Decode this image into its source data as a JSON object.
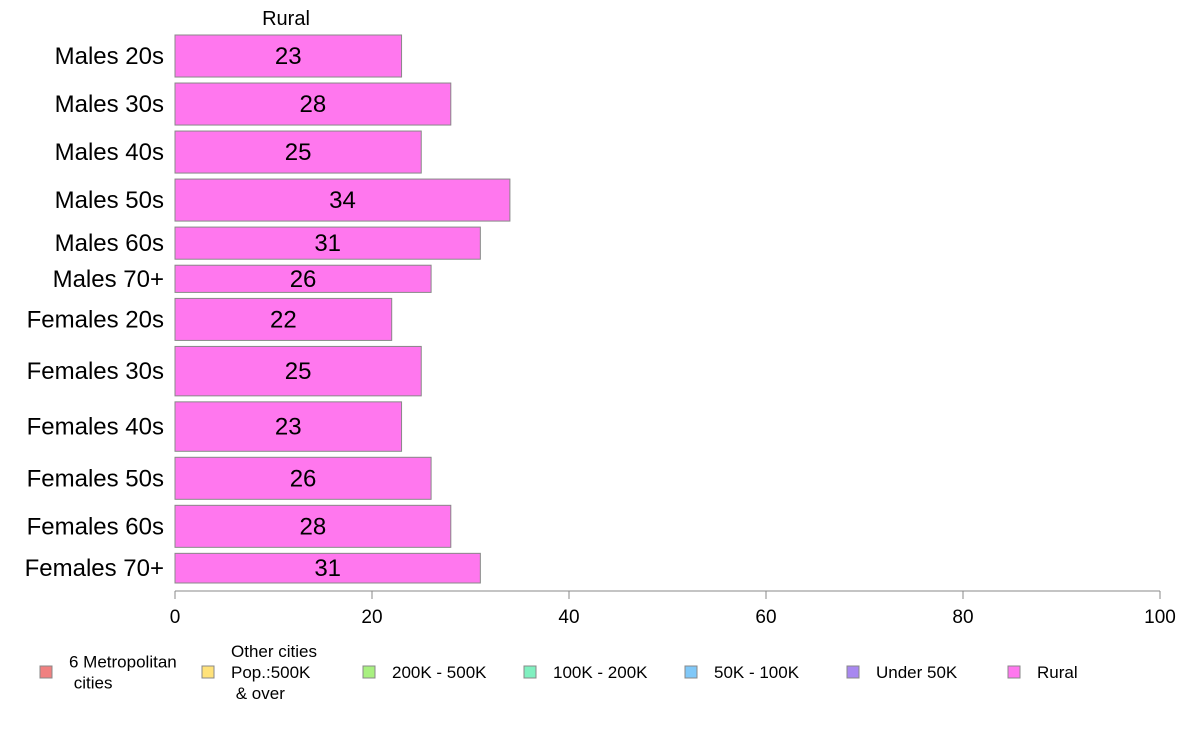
{
  "chart_data": {
    "type": "bar",
    "orientation": "horizontal",
    "panel_title": "Rural",
    "categories": [
      "Males 20s",
      "Males 30s",
      "Males 40s",
      "Males 50s",
      "Males 60s",
      "Males 70+",
      "Females 20s",
      "Females 30s",
      "Females 40s",
      "Females 50s",
      "Females 60s",
      "Females 70+"
    ],
    "values": [
      23,
      28,
      25,
      34,
      31,
      26,
      22,
      25,
      23,
      26,
      28,
      31
    ],
    "bar_weights": [
      0.85,
      0.85,
      0.85,
      0.85,
      0.65,
      0.55,
      0.85,
      1.0,
      1.0,
      0.85,
      0.85,
      0.6
    ],
    "xlim": [
      0,
      100
    ],
    "xticks": [
      0,
      20,
      40,
      60,
      80,
      100
    ],
    "bar_color": "#ff77ee",
    "bar_stroke": "#888888",
    "legend": [
      {
        "label": "6 Metropolitan\n cities",
        "color": "#f08080"
      },
      {
        "label": "Other cities\nPop.:500K\n & over",
        "color": "#ffe27a"
      },
      {
        "label": "200K - 500K",
        "color": "#a8f080"
      },
      {
        "label": "100K - 200K",
        "color": "#80f0c0"
      },
      {
        "label": "50K - 100K",
        "color": "#80c8f8"
      },
      {
        "label": "Under 50K",
        "color": "#a888f0"
      },
      {
        "label": "Rural",
        "color": "#ff77ee"
      }
    ],
    "legend_position": "bottom",
    "grid": false
  }
}
